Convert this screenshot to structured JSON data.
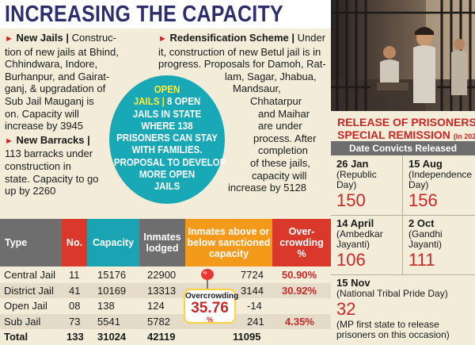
{
  "title": "INCREASING THE CAPACITY",
  "new_jails": {
    "heading": "New Jails |",
    "text_lines": [
      "Construc-",
      "tion of new jails at Bhind,",
      "Chhindwara, Indore,",
      "Burhanpur, and Gairat-",
      "ganj, & upgradation of",
      "Sub Jail Mauganj is",
      "on. Capacity will",
      "increase by 3945"
    ]
  },
  "new_barracks": {
    "heading": "New Barracks |",
    "text_lines": [
      "113 barracks under",
      "construction in",
      "state. Capacity to go",
      "up by 2260"
    ]
  },
  "redensification": {
    "heading": "Redensification Scheme |",
    "text_lines": [
      "Under",
      "it, construction of new Betul jail is in",
      "progress. Proposals for Damoh, Rat-",
      "lam, Sagar, Jhabua,",
      "Mandsaur,",
      "Chhatarpur",
      "and Maihar",
      "are under",
      "process. After",
      "completion",
      "of these jails,",
      "capacity will",
      "increase by 5128"
    ]
  },
  "open_jails": {
    "highlight_lines": [
      "OPEN",
      "JAILS |"
    ],
    "text_first": "8 OPEN",
    "text_lines": [
      "JAILS IN STATE",
      "WHERE 138",
      "PRISONERS CAN STAY",
      "WITH FAMILIES.",
      "PROPOSAL TO DEVELOP",
      "MORE OPEN",
      "JAILS"
    ]
  },
  "release": {
    "title_line1": "RELEASE OF PRISONERS,",
    "title_line2": "SPECIAL REMISSION",
    "title_year": "(In 2025)",
    "header": "Date Convicts Released",
    "entries": [
      {
        "date": "26 Jan",
        "occasion_lines": [
          "(Republic",
          "Day)"
        ],
        "count": "150"
      },
      {
        "date": "15 Aug",
        "occasion_lines": [
          "(Independence",
          "Day)"
        ],
        "count": "156"
      },
      {
        "date": "14 April",
        "occasion_lines": [
          "(Ambedkar",
          "Jayanti)"
        ],
        "count": "106"
      },
      {
        "date": "2 Oct",
        "occasion_lines": [
          "(Gandhi",
          "Jayanti)"
        ],
        "count": "111"
      },
      {
        "date": "15 Nov",
        "occasion_lines": [
          "(National Tribal Pride Day)"
        ],
        "count": "32"
      }
    ],
    "note_lines": [
      "(MP first state to release",
      "prisoners on this occasion)"
    ]
  },
  "table": {
    "headers": {
      "type": "Type",
      "no": "No.",
      "capacity": "Capacity",
      "inmates": [
        "Inmates",
        "lodged"
      ],
      "above": [
        "Inmates above or",
        "below sanctioned",
        "capacity"
      ],
      "over": [
        "Over-",
        "crowding",
        "%"
      ]
    },
    "rows": [
      {
        "type": "Central Jail",
        "no": "11",
        "capacity": "15176",
        "inmates": "22900",
        "above": "7724",
        "over": "50.90%"
      },
      {
        "type": "District Jail",
        "no": "41",
        "capacity": "10169",
        "inmates": "13313",
        "above": "3144",
        "over": "30.92%"
      },
      {
        "type": "Open Jail",
        "no": "08",
        "capacity": "138",
        "inmates": "124",
        "above": "-14",
        "over": ""
      },
      {
        "type": "Sub Jail",
        "no": "73",
        "capacity": "5541",
        "inmates": "5782",
        "above": "241",
        "over": "4.35%"
      },
      {
        "type": "Total",
        "no": "133",
        "capacity": "31024",
        "inmates": "42119",
        "above": "11095",
        "over": ""
      }
    ],
    "callout": {
      "label": "Overcrowding",
      "value": "35.76",
      "unit": "%"
    }
  },
  "colors": {
    "title": "#2d2d6b",
    "accent_red": "#c62828",
    "teal": "#19a8b6",
    "header_grey": "#6e6e6e",
    "header_teal": "#1aa4b3",
    "header_orange": "#f39a1b",
    "header_red": "#d9382b",
    "highlight_yellow": "#ffd23b"
  }
}
